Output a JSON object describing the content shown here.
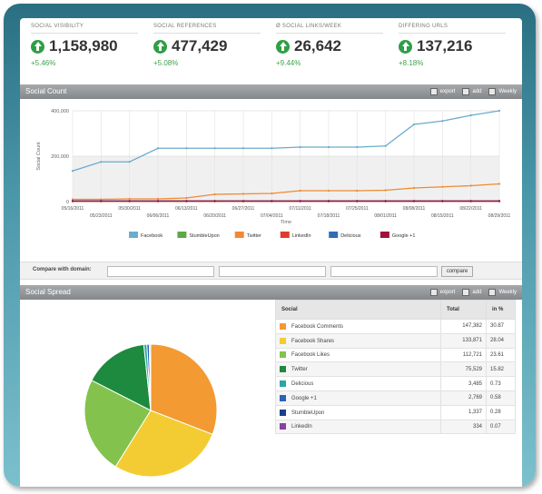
{
  "kpis": [
    {
      "label": "SOCIAL VISIBILITY",
      "value": "1,158,980",
      "change": "+5.46%"
    },
    {
      "label": "SOCIAL REFERENCES",
      "value": "477,429",
      "change": "+5.08%"
    },
    {
      "label": "Ø SOCIAL LINKS/WEEK",
      "value": "26,642",
      "change": "+9.44%"
    },
    {
      "label": "DIFFERING URLS",
      "value": "137,216",
      "change": "+8.18%"
    }
  ],
  "panels": {
    "social_count": {
      "title": "Social Count",
      "export": "export",
      "add": "add",
      "weekly": "Weekly"
    },
    "social_spread": {
      "title": "Social Spread",
      "export": "export",
      "add": "add",
      "weekly": "Weekly"
    }
  },
  "compare": {
    "label": "Compare with domain:",
    "button": "compare"
  },
  "colors": {
    "facebook": "#6aaccb",
    "stumbleupon": "#5fa84a",
    "twitter": "#f08a32",
    "linkedin": "#e33a2e",
    "delicious": "#2f6eb5",
    "googleplus": "#a1133a"
  },
  "chart_data": {
    "type": "line",
    "xlabel": "Time",
    "ylabel": "Social Count",
    "ylim": [
      0,
      400000
    ],
    "yticks": [
      "400,000",
      "200,000",
      "0"
    ],
    "x": [
      "05/16/2011",
      "05/23/2011",
      "05/30/2011",
      "06/06/2011",
      "06/13/2011",
      "06/20/2011",
      "06/27/2011",
      "07/04/2011",
      "07/11/2011",
      "07/18/2011",
      "07/25/2011",
      "08/01/2011",
      "08/08/2011",
      "08/15/2011",
      "08/22/2011",
      "08/29/2011"
    ],
    "series": [
      {
        "name": "Facebook",
        "color": "#6aaccb",
        "values": [
          135000,
          175000,
          175000,
          235000,
          235000,
          235000,
          235000,
          235000,
          240000,
          240000,
          240000,
          245000,
          340000,
          355000,
          380000,
          400000
        ]
      },
      {
        "name": "StumbleUpon",
        "color": "#5fa84a",
        "values": [
          2000,
          2000,
          2000,
          2000,
          2000,
          2000,
          2000,
          2000,
          2000,
          2000,
          2000,
          2000,
          2000,
          2000,
          2000,
          2000
        ]
      },
      {
        "name": "Twitter",
        "color": "#f08a32",
        "values": [
          10000,
          10000,
          12000,
          12000,
          16000,
          32000,
          34000,
          36000,
          48000,
          48000,
          48000,
          50000,
          60000,
          65000,
          70000,
          78000
        ]
      },
      {
        "name": "LinkedIn",
        "color": "#e33a2e",
        "values": [
          1000,
          1000,
          1000,
          1000,
          1000,
          1000,
          1000,
          1000,
          1000,
          1000,
          1000,
          1000,
          1000,
          1000,
          1000,
          1000
        ]
      },
      {
        "name": "Delicious",
        "color": "#2f6eb5",
        "values": [
          3000,
          3000,
          3000,
          3000,
          3000,
          3000,
          3000,
          3000,
          3000,
          3000,
          3000,
          3000,
          3000,
          3000,
          3000,
          3000
        ]
      },
      {
        "name": "Google +1",
        "color": "#a1133a",
        "values": [
          2500,
          2500,
          2500,
          2500,
          2500,
          2500,
          2500,
          2500,
          2500,
          2500,
          2500,
          2500,
          2500,
          2500,
          2500,
          2500
        ]
      }
    ],
    "legend": "bottom"
  },
  "spread": {
    "headers": [
      "Social",
      "Total",
      "in %"
    ],
    "rows": [
      {
        "name": "Facebook Comments",
        "total": "147,382",
        "pct": "30.87",
        "value": 30.87,
        "color": "#f39a32"
      },
      {
        "name": "Facebook Shares",
        "total": "133,871",
        "pct": "28.04",
        "value": 28.04,
        "color": "#f3cc33"
      },
      {
        "name": "Facebook Likes",
        "total": "112,721",
        "pct": "23.61",
        "value": 23.61,
        "color": "#83c34d"
      },
      {
        "name": "Twitter",
        "total": "75,529",
        "pct": "15.82",
        "value": 15.82,
        "color": "#1d8a3f"
      },
      {
        "name": "Delicious",
        "total": "3,485",
        "pct": "0.73",
        "value": 0.73,
        "color": "#29a8a3"
      },
      {
        "name": "Google +1",
        "total": "2,769",
        "pct": "0.58",
        "value": 0.58,
        "color": "#2b63b6"
      },
      {
        "name": "StumbleUpon",
        "total": "1,337",
        "pct": "0.28",
        "value": 0.28,
        "color": "#1d3f8a"
      },
      {
        "name": "LinkedIn",
        "total": "334",
        "pct": "0.07",
        "value": 0.07,
        "color": "#8a3fa5"
      }
    ]
  }
}
